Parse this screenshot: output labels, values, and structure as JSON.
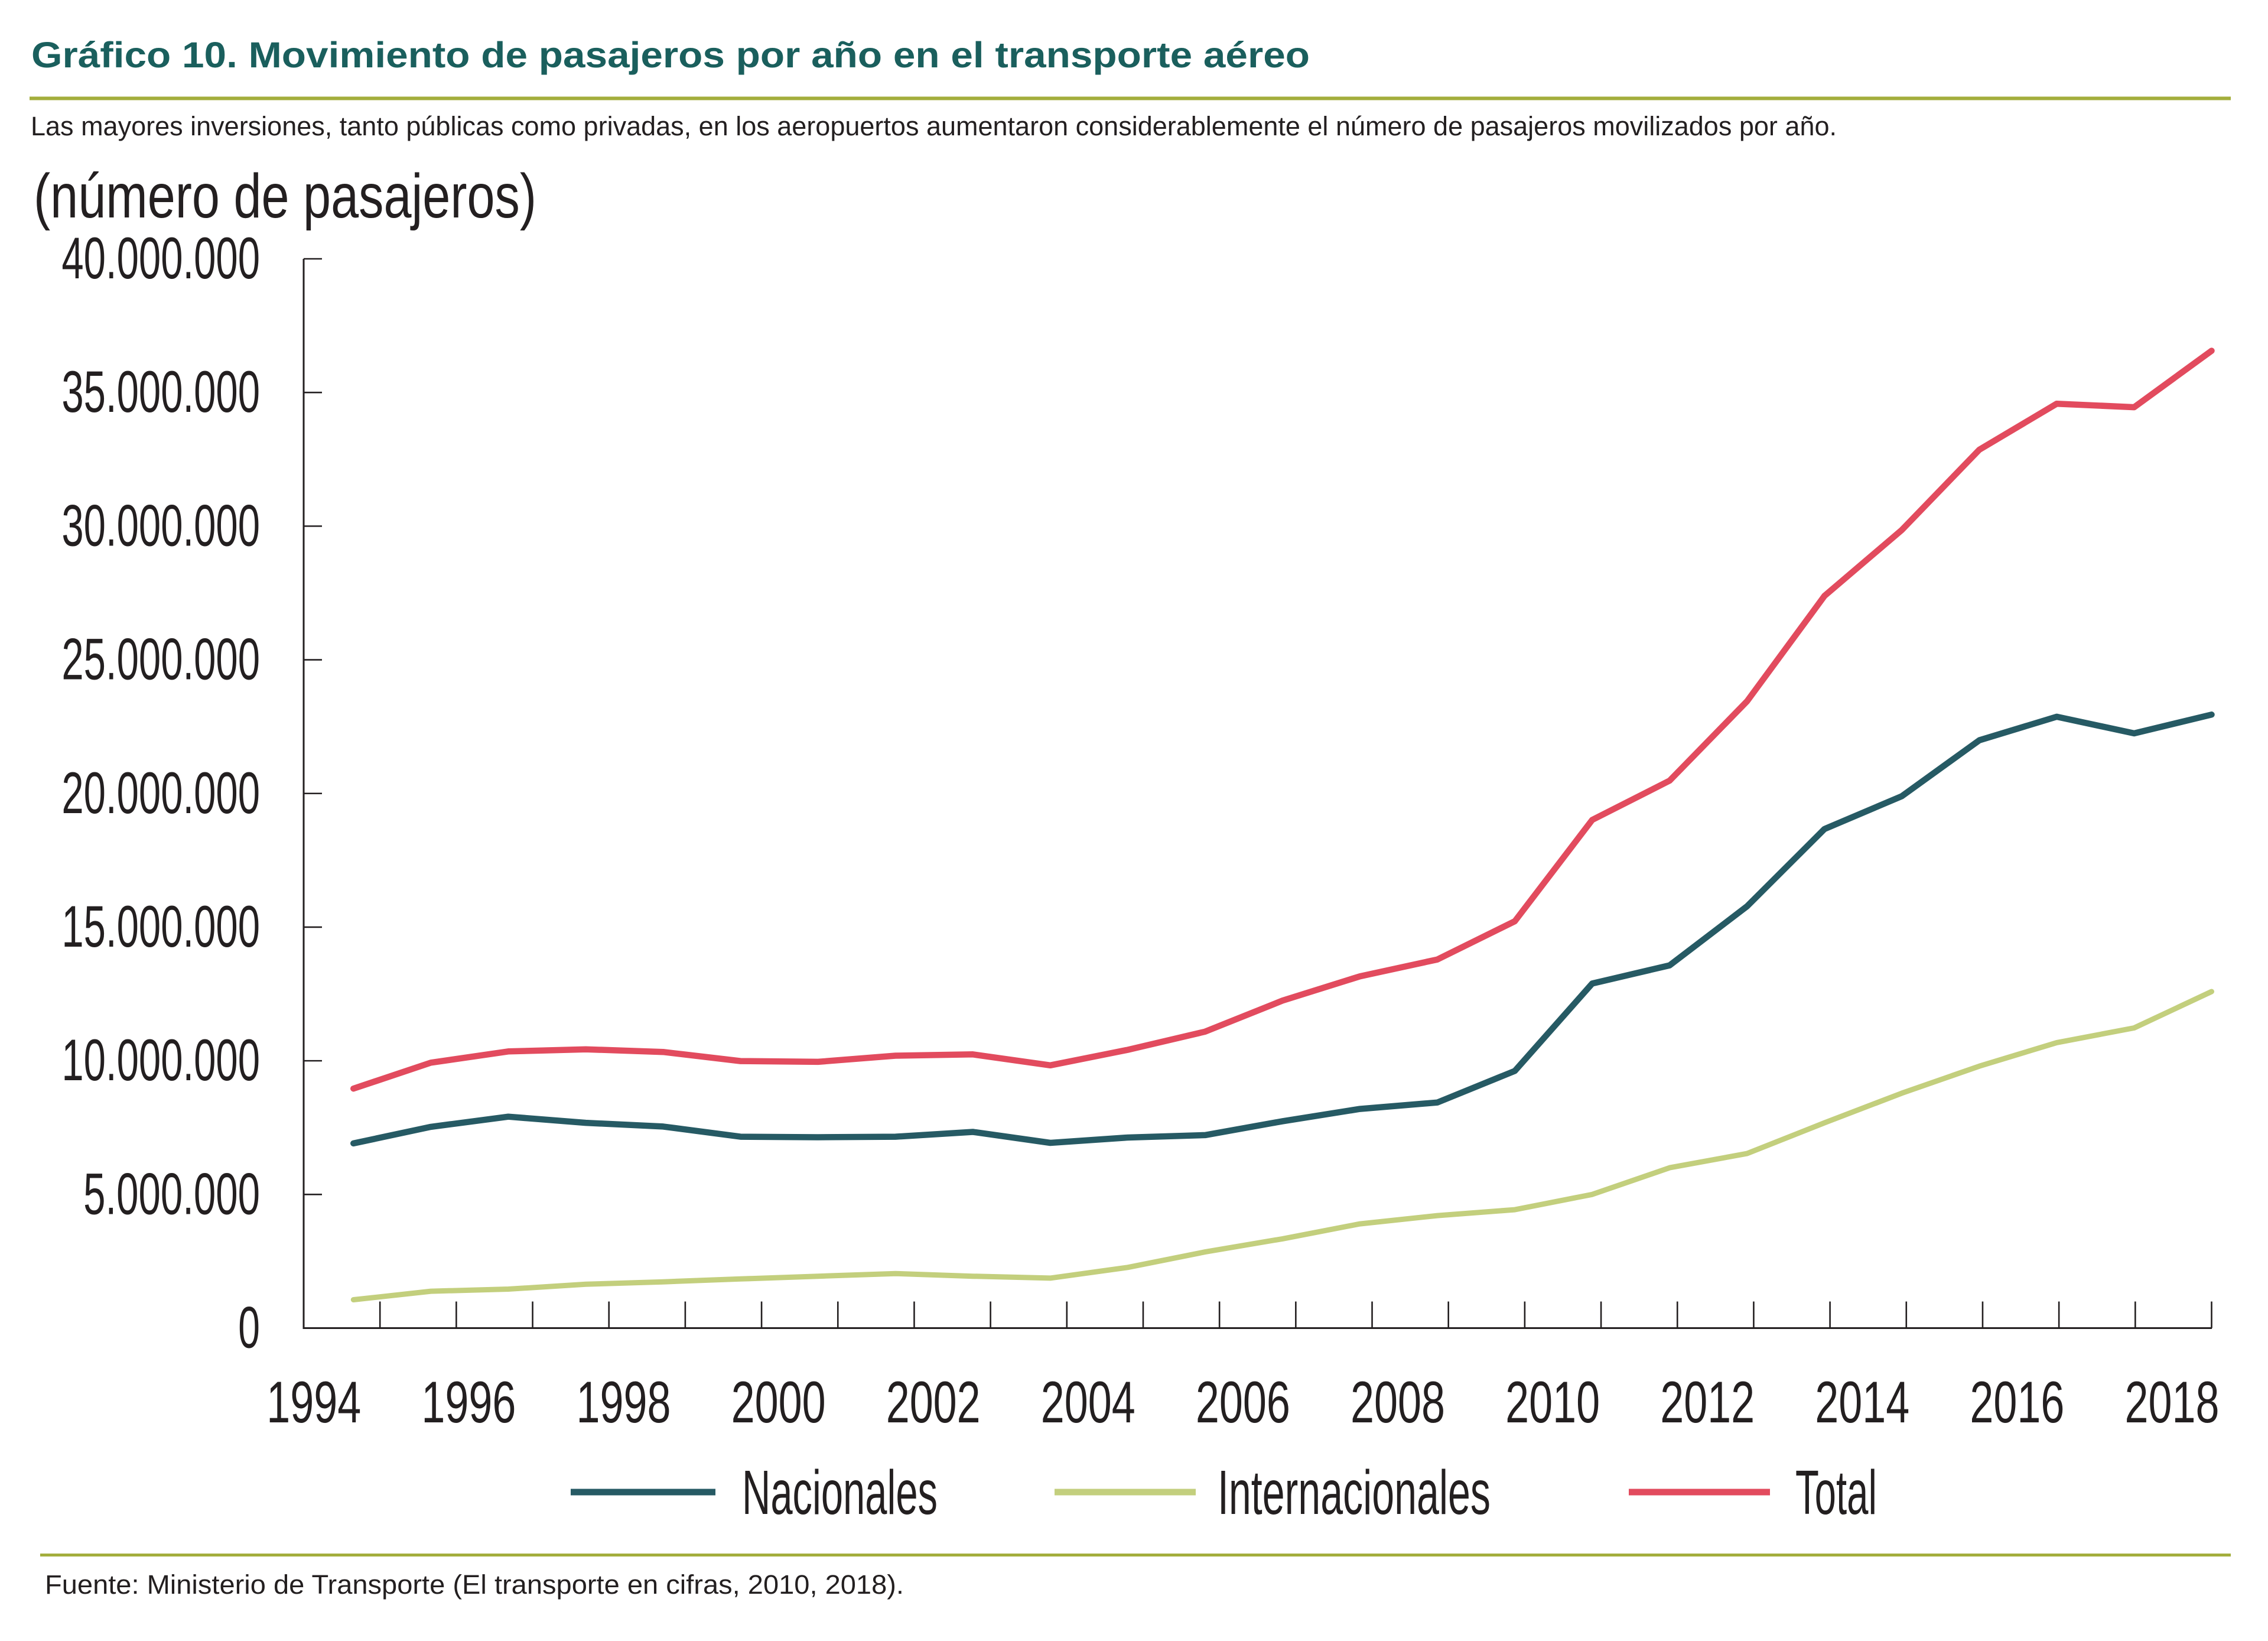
{
  "header": {
    "title": "Gráfico 10. Movimiento de pasajeros por año en el transporte aéreo",
    "subtitle": "Las mayores inversiones, tanto públicas como privadas, en los aeropuertos aumentaron considerablemente el número de pasajeros movilizados por año.",
    "title_color": "#1a5f5d",
    "rule_color": "#a3ae3c"
  },
  "source": {
    "text": "Fuente: Ministerio de Transporte (El transporte en cifras, 2010, 2018)."
  },
  "chart_data": {
    "type": "line",
    "unit_label": "(número de pasajeros)",
    "x": [
      1994,
      1995,
      1996,
      1997,
      1998,
      1999,
      2000,
      2001,
      2002,
      2003,
      2004,
      2005,
      2006,
      2007,
      2008,
      2009,
      2010,
      2011,
      2012,
      2013,
      2014,
      2015,
      2016,
      2017,
      2018
    ],
    "series": [
      {
        "name": "Nacionales",
        "color": "#265a64",
        "values": [
          6910000,
          7530000,
          7910000,
          7680000,
          7540000,
          7160000,
          7140000,
          7160000,
          7340000,
          6930000,
          7130000,
          7220000,
          7740000,
          8200000,
          8440000,
          9620000,
          12890000,
          13570000,
          15780000,
          18670000,
          19900000,
          21990000,
          22870000,
          22250000,
          22950000
        ]
      },
      {
        "name": "Internacionales",
        "color": "#c3cf7d",
        "values": [
          1060000,
          1380000,
          1460000,
          1640000,
          1730000,
          1840000,
          1940000,
          2040000,
          1940000,
          1870000,
          2270000,
          2850000,
          3340000,
          3900000,
          4210000,
          4430000,
          5000000,
          6000000,
          6530000,
          7680000,
          8790000,
          9800000,
          10680000,
          11230000,
          12590000
        ]
      },
      {
        "name": "Total",
        "color": "#e24b5e",
        "values": [
          8960000,
          9930000,
          10350000,
          10430000,
          10330000,
          9990000,
          9960000,
          10190000,
          10240000,
          9830000,
          10410000,
          11090000,
          12250000,
          13160000,
          13790000,
          15220000,
          19010000,
          20480000,
          23450000,
          27390000,
          29860000,
          32860000,
          34580000,
          34450000,
          36560000
        ]
      }
    ],
    "ylim": [
      0,
      40000000
    ],
    "y_tick_step": 5000000,
    "y_tick_labels": [
      "0",
      "5.000.000",
      "10.000.000",
      "15.000.000",
      "20.000.000",
      "25.000.000",
      "30.000.000",
      "35.000.000",
      "40.000.000"
    ],
    "x_tick_labels": [
      "1994",
      "1996",
      "1998",
      "2000",
      "2002",
      "2004",
      "2006",
      "2008",
      "2010",
      "2012",
      "2014",
      "2016",
      "2018"
    ],
    "grid": false,
    "legend_position": "bottom",
    "axis_color": "#231f20",
    "text_color": "#231f20"
  }
}
